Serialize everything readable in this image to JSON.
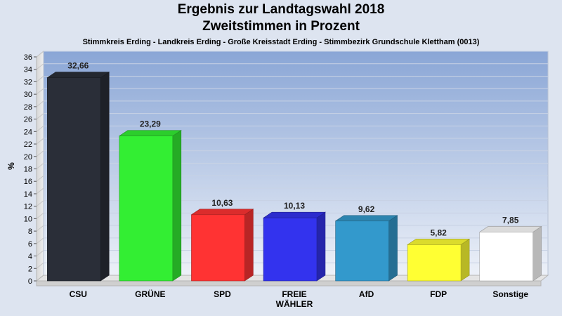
{
  "chart_data": {
    "type": "bar",
    "title": "Ergebnis zur Landtagswahl 2018",
    "subtitle": "Zweitstimmen in Prozent",
    "caption": "Stimmkreis Erding - Landkreis Erding - Große Kreisstadt Erding - Stimmbezirk Grundschule Klettham (0013)",
    "ylabel": "%",
    "ylim": [
      0,
      36
    ],
    "yticks": [
      0,
      2,
      4,
      6,
      8,
      10,
      12,
      14,
      16,
      18,
      20,
      22,
      24,
      26,
      28,
      30,
      32,
      34,
      36
    ],
    "grid": true,
    "categories": [
      [
        "CSU"
      ],
      [
        "GRÜNE"
      ],
      [
        "SPD"
      ],
      [
        "FREIE",
        "WÄHLER"
      ],
      [
        "AfD"
      ],
      [
        "FDP"
      ],
      [
        "Sonstige"
      ]
    ],
    "values": [
      32.66,
      23.29,
      10.63,
      10.13,
      9.62,
      5.82,
      7.85
    ],
    "value_labels": [
      "32,66",
      "23,29",
      "10,63",
      "10,13",
      "9,62",
      "5,82",
      "7,85"
    ],
    "colors": [
      "#2a2e38",
      "#33ee33",
      "#ff3333",
      "#3333ee",
      "#3399cc",
      "#ffff33",
      "#ffffff"
    ]
  }
}
